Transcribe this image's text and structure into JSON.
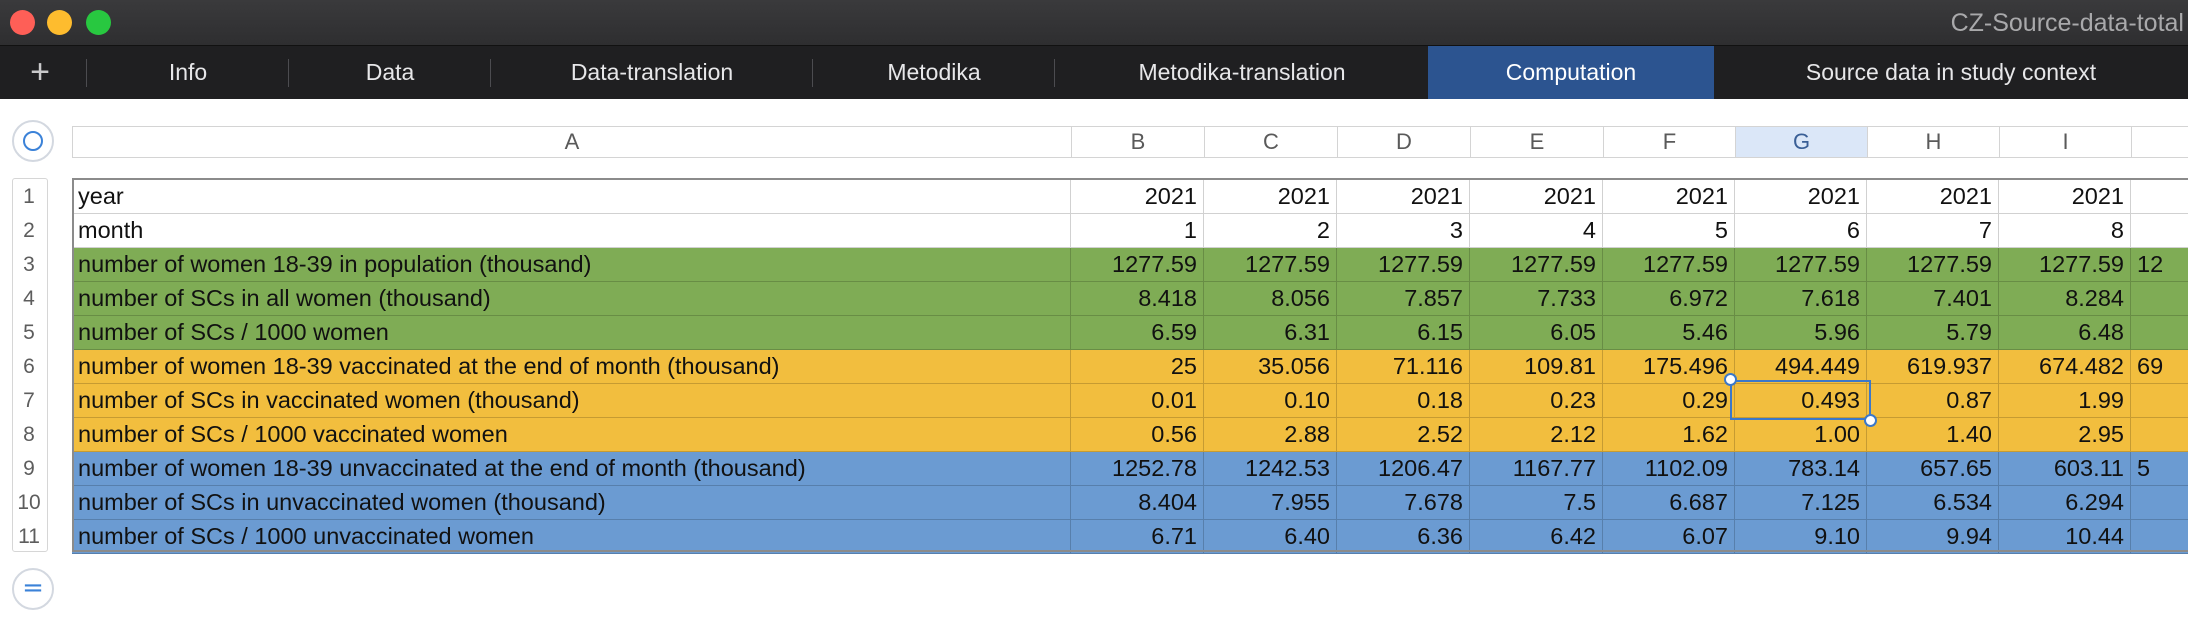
{
  "window": {
    "title": "CZ-Source-data-total"
  },
  "tabs": [
    {
      "label": "Info",
      "active": false
    },
    {
      "label": "Data",
      "active": false
    },
    {
      "label": "Data-translation",
      "active": false
    },
    {
      "label": "Metodika",
      "active": false
    },
    {
      "label": "Metodika-translation",
      "active": false
    },
    {
      "label": "Computation",
      "active": true
    },
    {
      "label": "Source data in study context",
      "active": false
    }
  ],
  "columns": [
    "A",
    "B",
    "C",
    "D",
    "E",
    "F",
    "G",
    "H",
    "I"
  ],
  "selected_column": "G",
  "selected_cell": "G7",
  "row_groups": {
    "header": "#ffffff",
    "population": "#7fac55",
    "vaccinated": "#f2be3e",
    "unvaccinated": "#6b9bd2"
  },
  "rows": [
    {
      "n": "1",
      "group": "header",
      "label": "year",
      "values": [
        "2021",
        "2021",
        "2021",
        "2021",
        "2021",
        "2021",
        "2021",
        "2021"
      ]
    },
    {
      "n": "2",
      "group": "header",
      "label": "month",
      "values": [
        "1",
        "2",
        "3",
        "4",
        "5",
        "6",
        "7",
        "8"
      ]
    },
    {
      "n": "3",
      "group": "population",
      "label": "number of women 18-39 in population (thousand)",
      "values": [
        "1277.59",
        "1277.59",
        "1277.59",
        "1277.59",
        "1277.59",
        "1277.59",
        "1277.59",
        "1277.59"
      ]
    },
    {
      "n": "4",
      "group": "population",
      "label": "number of SCs in all women (thousand)",
      "values": [
        "8.418",
        "8.056",
        "7.857",
        "7.733",
        "6.972",
        "7.618",
        "7.401",
        "8.284"
      ]
    },
    {
      "n": "5",
      "group": "population",
      "label": "number of SCs / 1000 women",
      "values": [
        "6.59",
        "6.31",
        "6.15",
        "6.05",
        "5.46",
        "5.96",
        "5.79",
        "6.48"
      ]
    },
    {
      "n": "6",
      "group": "vaccinated",
      "label": "number of women 18-39 vaccinated at the end of month (thousand)",
      "values": [
        "25",
        "35.056",
        "71.116",
        "109.81",
        "175.496",
        "494.449",
        "619.937",
        "674.482"
      ]
    },
    {
      "n": "7",
      "group": "vaccinated",
      "label": "number of SCs in vaccinated women (thousand)",
      "values": [
        "0.01",
        "0.10",
        "0.18",
        "0.23",
        "0.29",
        "0.493",
        "0.87",
        "1.99"
      ]
    },
    {
      "n": "8",
      "group": "vaccinated",
      "label": "number of SCs / 1000 vaccinated women",
      "values": [
        "0.56",
        "2.88",
        "2.52",
        "2.12",
        "1.62",
        "1.00",
        "1.40",
        "2.95"
      ]
    },
    {
      "n": "9",
      "group": "unvaccinated",
      "label": "number of women 18-39 unvaccinated at the end of month (thousand)",
      "values": [
        "1252.78",
        "1242.53",
        "1206.47",
        "1167.77",
        "1102.09",
        "783.14",
        "657.65",
        "603.11"
      ]
    },
    {
      "n": "10",
      "group": "unvaccinated",
      "label": "number of SCs in unvaccinated women (thousand)",
      "values": [
        "8.404",
        "7.955",
        "7.678",
        "7.5",
        "6.687",
        "7.125",
        "6.534",
        "6.294"
      ]
    },
    {
      "n": "11",
      "group": "unvaccinated",
      "label": "number of SCs / 1000 unvaccinated women",
      "values": [
        "6.71",
        "6.40",
        "6.36",
        "6.42",
        "6.07",
        "9.10",
        "9.94",
        "10.44"
      ]
    }
  ],
  "clipped_column_j": {
    "row3": "12",
    "row6": "69",
    "row9": "5"
  }
}
